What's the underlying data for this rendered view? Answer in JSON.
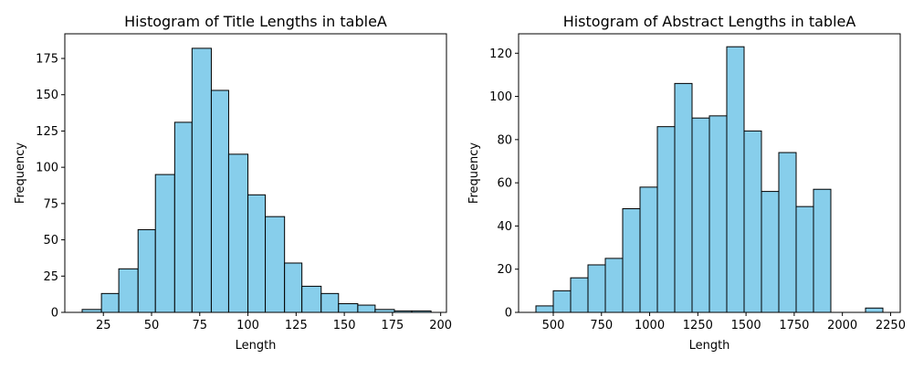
{
  "chart_data": [
    {
      "type": "bar",
      "title": "Histogram of Title Lengths in tableA",
      "xlabel": "Length",
      "ylabel": "Frequency",
      "bar_color": "#87ceeb",
      "edge_color": "#000000",
      "bins": [
        {
          "x0": 14,
          "x1": 24,
          "count": 2
        },
        {
          "x0": 24,
          "x1": 33,
          "count": 13
        },
        {
          "x0": 33,
          "x1": 43,
          "count": 30
        },
        {
          "x0": 43,
          "x1": 52,
          "count": 57
        },
        {
          "x0": 52,
          "x1": 62,
          "count": 95
        },
        {
          "x0": 62,
          "x1": 71,
          "count": 131
        },
        {
          "x0": 71,
          "x1": 81,
          "count": 182
        },
        {
          "x0": 81,
          "x1": 90,
          "count": 153
        },
        {
          "x0": 90,
          "x1": 100,
          "count": 109
        },
        {
          "x0": 100,
          "x1": 109,
          "count": 81
        },
        {
          "x0": 109,
          "x1": 119,
          "count": 66
        },
        {
          "x0": 119,
          "x1": 128,
          "count": 34
        },
        {
          "x0": 128,
          "x1": 138,
          "count": 18
        },
        {
          "x0": 138,
          "x1": 147,
          "count": 13
        },
        {
          "x0": 147,
          "x1": 157,
          "count": 6
        },
        {
          "x0": 157,
          "x1": 166,
          "count": 5
        },
        {
          "x0": 166,
          "x1": 176,
          "count": 2
        },
        {
          "x0": 176,
          "x1": 185,
          "count": 1
        },
        {
          "x0": 185,
          "x1": 195,
          "count": 1
        }
      ],
      "xlim": [
        5,
        203
      ],
      "ylim": [
        0,
        192
      ],
      "xticks": [
        25,
        50,
        75,
        100,
        125,
        150,
        175,
        200
      ],
      "yticks": [
        0,
        25,
        50,
        75,
        100,
        125,
        150,
        175
      ],
      "grid": false
    },
    {
      "type": "bar",
      "title": "Histogram of Abstract Lengths in tableA",
      "xlabel": "Length",
      "ylabel": "Frequency",
      "bar_color": "#87ceeb",
      "edge_color": "#000000",
      "bins": [
        {
          "x0": 410,
          "x1": 500,
          "count": 3
        },
        {
          "x0": 500,
          "x1": 590,
          "count": 10
        },
        {
          "x0": 590,
          "x1": 680,
          "count": 16
        },
        {
          "x0": 680,
          "x1": 770,
          "count": 22
        },
        {
          "x0": 770,
          "x1": 860,
          "count": 25
        },
        {
          "x0": 860,
          "x1": 950,
          "count": 48
        },
        {
          "x0": 950,
          "x1": 1040,
          "count": 58
        },
        {
          "x0": 1040,
          "x1": 1130,
          "count": 86
        },
        {
          "x0": 1130,
          "x1": 1220,
          "count": 106
        },
        {
          "x0": 1220,
          "x1": 1310,
          "count": 90
        },
        {
          "x0": 1310,
          "x1": 1400,
          "count": 91
        },
        {
          "x0": 1400,
          "x1": 1490,
          "count": 123
        },
        {
          "x0": 1490,
          "x1": 1580,
          "count": 84
        },
        {
          "x0": 1580,
          "x1": 1670,
          "count": 56
        },
        {
          "x0": 1670,
          "x1": 1760,
          "count": 74
        },
        {
          "x0": 1760,
          "x1": 1850,
          "count": 49
        },
        {
          "x0": 1850,
          "x1": 1940,
          "count": 57
        },
        {
          "x0": 1940,
          "x1": 2030,
          "count": 0
        },
        {
          "x0": 2030,
          "x1": 2120,
          "count": 0
        },
        {
          "x0": 2120,
          "x1": 2210,
          "count": 2
        }
      ],
      "xlim": [
        320,
        2300
      ],
      "ylim": [
        0,
        129
      ],
      "xticks": [
        500,
        750,
        1000,
        1250,
        1500,
        1750,
        2000,
        2250
      ],
      "yticks": [
        0,
        20,
        40,
        60,
        80,
        100,
        120
      ],
      "grid": false
    }
  ]
}
